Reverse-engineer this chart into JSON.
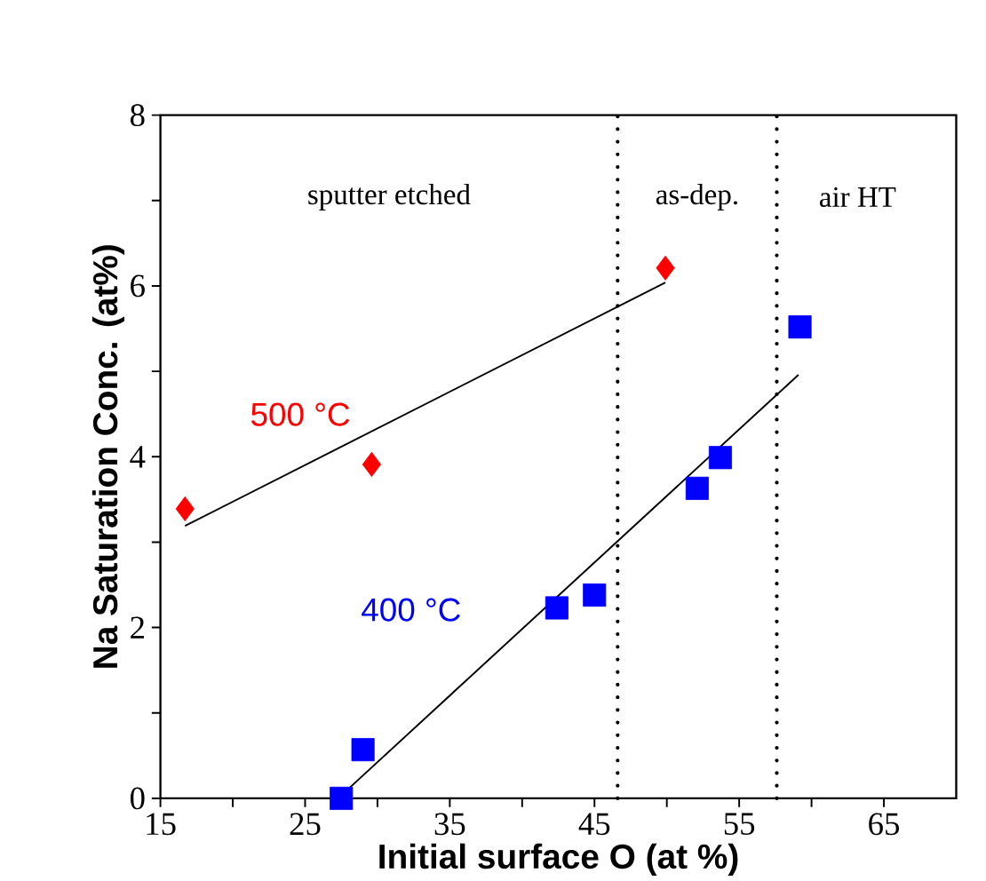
{
  "chart_data": {
    "type": "scatter",
    "xlabel": "Initial surface O (at %)",
    "ylabel": "Na Saturation Conc. (at%)",
    "xlim": [
      15,
      70
    ],
    "ylim": [
      0,
      8
    ],
    "xticks": [
      15,
      {
        "value": 20,
        "label": null
      },
      25,
      {
        "value": 30,
        "label": null
      },
      35,
      {
        "value": 40,
        "label": null
      },
      45,
      {
        "value": 50,
        "label": null
      },
      55,
      {
        "value": 60,
        "label": null
      },
      65
    ],
    "yticks": [
      0,
      {
        "value": 1,
        "label": null
      },
      2,
      {
        "value": 3,
        "label": null
      },
      4,
      {
        "value": 5,
        "label": null
      },
      6,
      {
        "value": 7,
        "label": null
      },
      8
    ],
    "grid": false,
    "series": [
      {
        "name": "500 °C",
        "color": "#ff0000",
        "marker": "diamond",
        "x": [
          16.7,
          29.6,
          49.9
        ],
        "values": [
          3.39,
          3.91,
          6.21
        ]
      },
      {
        "name": "400 °C",
        "color": "#0000ff",
        "marker": "square",
        "x": [
          27.5,
          29.0,
          42.4,
          45.0,
          52.1,
          53.7,
          59.2
        ],
        "values": [
          0,
          0.57,
          2.23,
          2.38,
          3.63,
          3.99,
          5.52
        ]
      },
      {
        "type": "line",
        "color": "#000000",
        "x": [
          16.7,
          49.9
        ],
        "values": [
          3.19,
          6.04
        ]
      },
      {
        "type": "line",
        "color": "#000000",
        "x": [
          27.6,
          59.1
        ],
        "values": [
          0.05,
          4.96
        ]
      }
    ],
    "ref_lines": [
      {
        "axis": "x",
        "value": 46.6,
        "color": "#000000",
        "line_style": "dotted"
      },
      {
        "axis": "x",
        "value": 57.6,
        "color": "#000000",
        "line_style": "dotted"
      }
    ],
    "annotations": [
      "sputter etched",
      "as-dep.",
      "air HT"
    ]
  }
}
